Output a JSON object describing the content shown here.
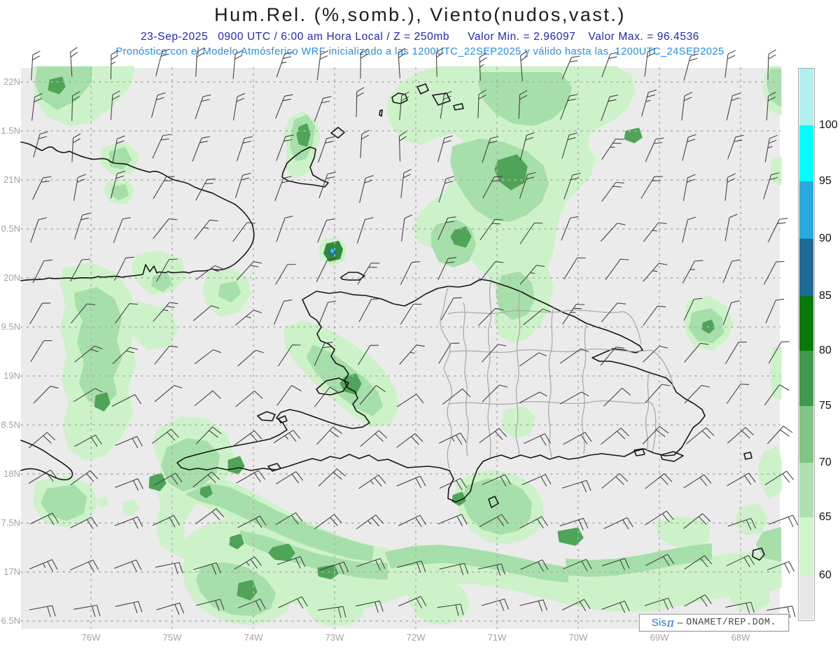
{
  "header": {
    "title": "Hum.Rel. (%,somb.), Viento(nudos,vast.)",
    "subtitle": {
      "date": "23-Sep-2025",
      "run_info": "0900 UTC / 6:00 am Hora Local / Z = 250mb",
      "min_label": "Valor Min. = 2.96097",
      "max_label": "Valor Max. = 96.4536"
    },
    "model_line": "Pronóstico con el Modelo Atmósferico WRF inicializado a las 1200UTC_22SEP2025 y válido hasta las  1200UTC_24SEP2025"
  },
  "axes": {
    "lat_labels": [
      "22N",
      "1.5N",
      "21N",
      "0.5N",
      "20N",
      "9.5N",
      "19N",
      "8.5N",
      "18N",
      "7.5N",
      "17N",
      "6.5N"
    ],
    "lon_labels": [
      "76W",
      "75W",
      "74W",
      "73W",
      "72W",
      "71W",
      "70W",
      "69W",
      "68W"
    ]
  },
  "colorbar": {
    "tick_labels": [
      "100",
      "95",
      "90",
      "85",
      "80",
      "75",
      "70",
      "65",
      "60"
    ],
    "segment_colors": [
      "#b2efef",
      "#00ffff",
      "#29aadd",
      "#1d6b94",
      "#087808",
      "#419a4c",
      "#80c583",
      "#aee1b0",
      "#d0f4cc",
      "#e8e8e8"
    ]
  },
  "watermark": {
    "sys_name": "Sis",
    "pi_symbol": "π",
    "separator": "–",
    "org": "ONAMET/REP.DOM."
  },
  "chart_data": {
    "type": "heatmap",
    "title": "Hum.Rel. (%,somb.), Viento(nudos,vast.)",
    "field": "Relative humidity (%, shaded) with wind barbs (knots)",
    "level": "250mb",
    "valid_time": "23-Sep-2025 0900 UTC / 6:00 am Hora Local",
    "value_min": 2.96097,
    "value_max": 96.4536,
    "shading_levels_percent": [
      60,
      65,
      70,
      75,
      80,
      85,
      90,
      95,
      100
    ],
    "model": "WRF",
    "initialized": "1200UTC_22SEP2025",
    "valid_until": "1200UTC_24SEP2025",
    "lat_range_labels": [
      "6.5N",
      "22N"
    ],
    "lon_range_labels": [
      "76W",
      "68W"
    ],
    "legend_position": "right",
    "grid": "dotted"
  }
}
